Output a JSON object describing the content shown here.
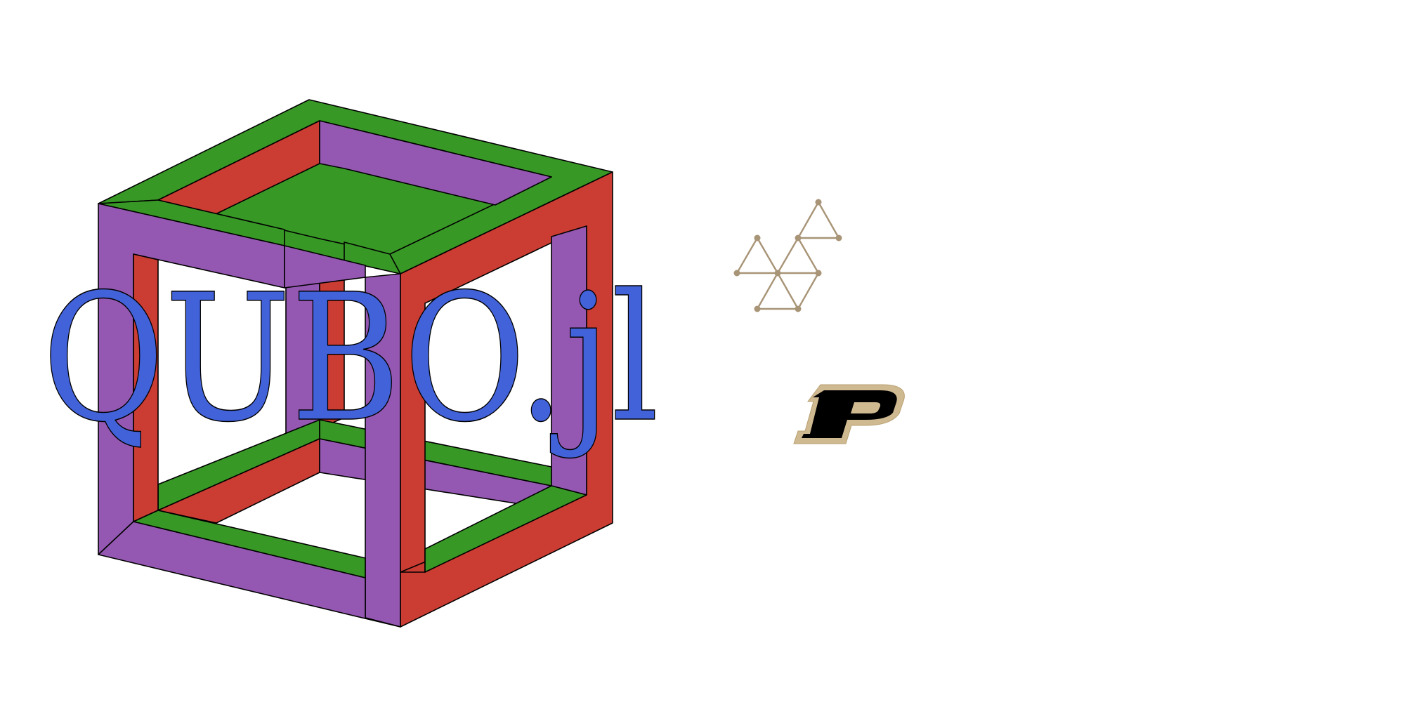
{
  "logo": {
    "wordmark": "QUBO.jl",
    "wordmark_color": "#4262da",
    "outline_color": "#000000",
    "cube_colors": {
      "green": "#389826",
      "red": "#cb3c33",
      "purple": "#9558b2"
    }
  },
  "network_icon": {
    "name": "triangular-lattice-icon",
    "color": "#a89477"
  },
  "purdue_logo": {
    "name": "purdue-p-logo",
    "letter": "P",
    "fill": "#000000",
    "border": "#cfb991"
  }
}
